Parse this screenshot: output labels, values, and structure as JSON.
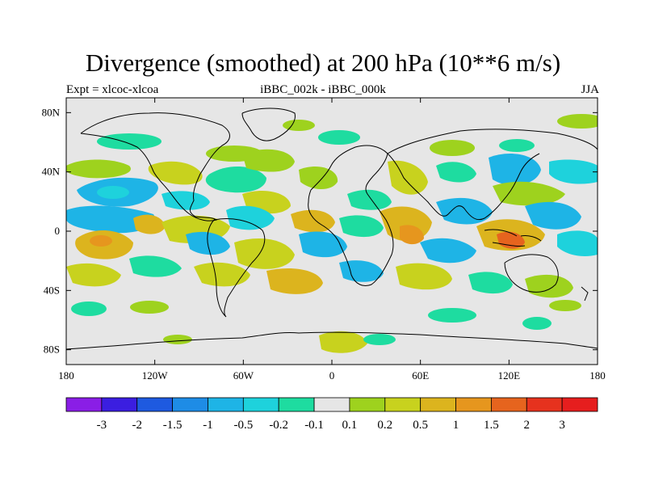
{
  "title": "Divergence (smoothed) at 200 hPa (10**6 m/s)",
  "left_label": "Expt = xlcoc-xlcoa",
  "center_label": "iBBC_002k - iBBC_000k",
  "right_label": "JJA",
  "axes": {
    "x_ticks": [
      "180",
      "120W",
      "60W",
      "0",
      "60E",
      "120E",
      "180"
    ],
    "y_ticks": [
      "80N",
      "40N",
      "0",
      "40S",
      "80S"
    ]
  },
  "colorbar": {
    "labels": [
      "-3",
      "-2",
      "-1.5",
      "-1",
      "-0.5",
      "-0.2",
      "-0.1",
      "0.1",
      "0.2",
      "0.5",
      "1",
      "1.5",
      "2",
      "3"
    ],
    "colors": [
      "#8a1ee6",
      "#3b1ee0",
      "#1e5ae0",
      "#1e8ce6",
      "#1eb4e6",
      "#1ed2dc",
      "#1edca0",
      "#e6e6e6",
      "#9ed21e",
      "#c8d21e",
      "#dcb41e",
      "#e6961e",
      "#e6641e",
      "#e6321e",
      "#e61e1e"
    ]
  },
  "colors": {
    "background": "#e6e6e6",
    "coast": "#000000"
  }
}
